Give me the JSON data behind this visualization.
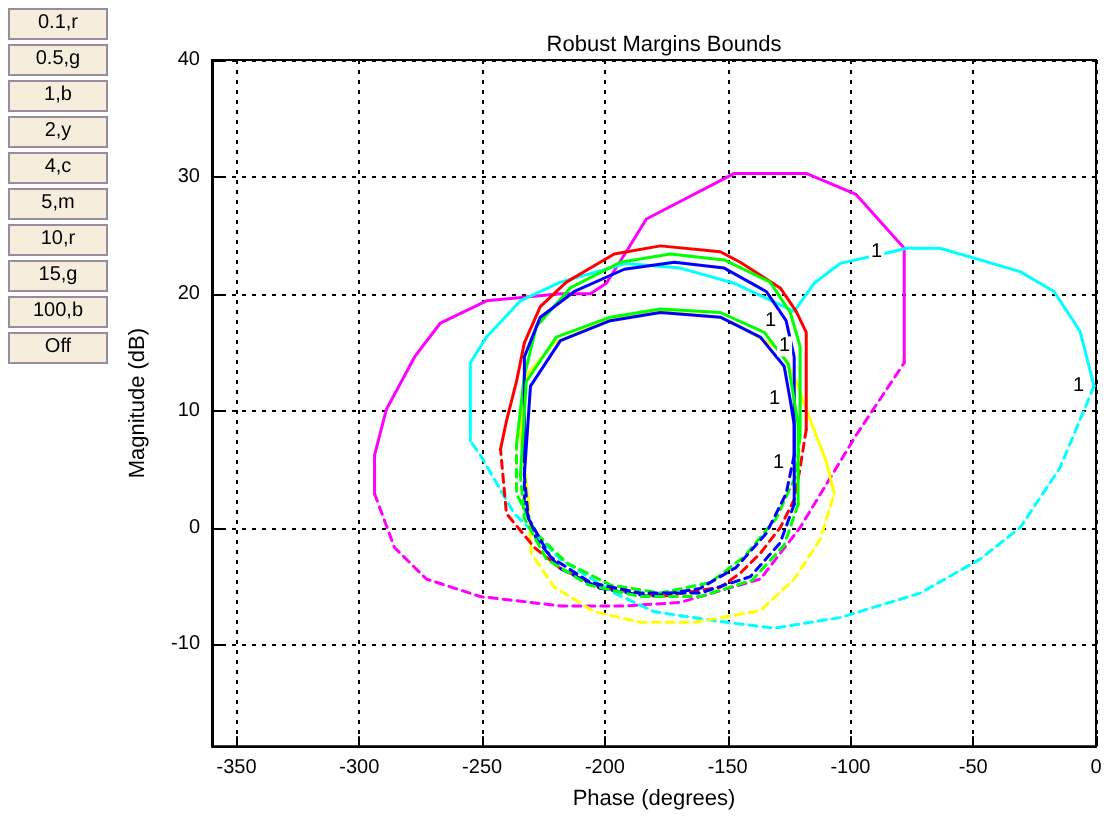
{
  "chart_data": {
    "type": "line",
    "title": "Robust Margins Bounds",
    "xlabel": "Phase (degrees)",
    "ylabel": "Magnitude (dB)",
    "xlim": [
      -360,
      0
    ],
    "xticks": [
      -350,
      -300,
      -250,
      -200,
      -150,
      -100,
      -50,
      0
    ],
    "ylim": [
      -18.7,
      40
    ],
    "yticks": [
      -10,
      0,
      10,
      20,
      30,
      40
    ],
    "grid": true,
    "marker": "none",
    "annotations": [
      "0.1,r",
      "0.5,g",
      "1,b",
      "2,y",
      "4,c",
      "5,m",
      "10,r",
      "15,g",
      "100,b",
      "Off",
      {
        "text": "1",
        "x": -83,
        "y": 23.6
      },
      {
        "text": "1",
        "x": -0.8,
        "y": 12.1
      },
      {
        "text": "1",
        "x": -126.2,
        "y": 17.7
      },
      {
        "text": "1",
        "x": -120.5,
        "y": 15.5
      },
      {
        "text": "1",
        "x": -124.6,
        "y": 11
      },
      {
        "text": "1",
        "x": -122.9,
        "y": 5.5
      }
    ],
    "series": [
      {
        "color": "#ff00ff",
        "line_style": "solid",
        "x": [
          -78.1,
          -78.1,
          -97.7,
          -118,
          -147.3,
          -183.1,
          -191.3,
          -199.4,
          -205.9,
          -218.1,
          -248.2,
          -267,
          -277.5,
          -289,
          -293.8,
          -293.8
        ],
        "values": [
          14.1,
          23.9,
          28.5,
          30.3,
          30.3,
          26.4,
          23.6,
          20.9,
          20.0,
          20.0,
          19.4,
          17.5,
          14.6,
          10.1,
          6.2,
          2.9
        ]
      },
      {
        "color": "#ff00ff",
        "line_style": "dashed",
        "x": [
          -293.8,
          -285.7,
          -272.7,
          -250.7,
          -218.1,
          -191.3,
          -169.3,
          -136.7,
          -120.5,
          -97.7,
          -78.1
        ],
        "values": [
          2.9,
          -1.7,
          -4.4,
          -5.9,
          -6.7,
          -6.7,
          -6.4,
          -4.4,
          0,
          7.9,
          14.1
        ]
      },
      {
        "color": "#00ffff",
        "line_style": "solid",
        "x": [
          -254.8,
          -254.8,
          -248.2,
          -234.4,
          -218.1,
          -191.3,
          -169.3,
          -147.3,
          -122.9,
          -114.8,
          -104.2,
          -83,
          -77.3,
          -63.5,
          -30.9,
          -17.1,
          -6.5,
          -0.8
        ],
        "values": [
          7.4,
          14.1,
          16.3,
          19.4,
          21.0,
          22.6,
          22.2,
          20.9,
          18.5,
          20.9,
          22.6,
          23.6,
          23.9,
          23.9,
          21.9,
          20.2,
          16.8,
          12.1
        ]
      },
      {
        "color": "#00ffff",
        "line_style": "dashed",
        "x": [
          -0.8,
          -14.7,
          -30.9,
          -47.2,
          -71.6,
          -104.2,
          -131,
          -150.6,
          -179.9,
          -196.2,
          -218.1,
          -236.9,
          -250.7,
          -254.8
        ],
        "values": [
          12.1,
          5.1,
          0,
          -2.7,
          -5.6,
          -7.7,
          -8.6,
          -8.1,
          -7.2,
          -5.6,
          -2.7,
          1.2,
          6.2,
          7.4
        ]
      },
      {
        "color": "#ffff00",
        "line_style": "solid",
        "x": [
          -231,
          -234.4,
          -232,
          -220.6,
          -196.2,
          -177.4,
          -153,
          -144.9,
          -128.6,
          -122.1,
          -118,
          -109.9,
          -106.6
        ],
        "values": [
          2.0,
          7.9,
          13.0,
          15.8,
          18.0,
          18.5,
          18.0,
          17.2,
          15.2,
          12.5,
          10.1,
          5.7,
          2.9
        ]
      },
      {
        "color": "#ffff00",
        "line_style": "dashed",
        "x": [
          -231,
          -230,
          -220.6,
          -204.3,
          -185.6,
          -163.6,
          -136.7,
          -122.9,
          -112.3,
          -106.6
        ],
        "values": [
          2.0,
          -2.2,
          -5.1,
          -7.2,
          -8.1,
          -8.1,
          -7.1,
          -4.4,
          -1.0,
          2.9
        ]
      },
      {
        "color": "#ff0000",
        "line_style": "solid",
        "x": [
          -242.5,
          -240.1,
          -236,
          -232.8,
          -226.3,
          -215.7,
          -196.2,
          -177.4,
          -153,
          -144.9,
          -128.6,
          -122.1,
          -118,
          -118
        ],
        "values": [
          6.7,
          9.1,
          12.5,
          15.8,
          18.9,
          21.0,
          23.4,
          24.1,
          23.6,
          22.7,
          20.5,
          18.5,
          16.7,
          8.4
        ]
      },
      {
        "color": "#ff0000",
        "line_style": "dashed",
        "x": [
          -118,
          -120.5,
          -122.9,
          -128.6,
          -136.7,
          -144.9,
          -153,
          -177.4,
          -201.9,
          -218.1,
          -228.7,
          -240.1,
          -242.5
        ],
        "values": [
          8.4,
          5.1,
          2.4,
          0,
          -2.2,
          -3.9,
          -5.1,
          -5.9,
          -5.1,
          -3.5,
          -1.7,
          1.2,
          6.7
        ]
      },
      {
        "color": "#00ff00",
        "line_style": "solid",
        "x": [
          -236,
          -232.8,
          -227.9,
          -214.1,
          -193.7,
          -173.4,
          -151.4,
          -132.7,
          -124.5,
          -120.5,
          -120.5
        ],
        "values": [
          7.1,
          13,
          17.2,
          20.5,
          22.7,
          23.4,
          22.9,
          21.0,
          18.4,
          15.5,
          7.9
        ]
      },
      {
        "color": "#00ff00",
        "line_style": "dashed",
        "x": [
          -120.5,
          -122.1,
          -130.2,
          -143.3,
          -157.1,
          -177.4,
          -197.8,
          -215.7,
          -227.9,
          -236,
          -236
        ],
        "values": [
          7.9,
          4.5,
          0.8,
          -2.5,
          -4.7,
          -5.6,
          -4.9,
          -3.0,
          -0.5,
          2.9,
          7.1
        ]
      },
      {
        "color": "#0000ff",
        "line_style": "solid",
        "x": [
          -232.8,
          -232.8,
          -226.3,
          -212.4,
          -192.1,
          -171.7,
          -151.4,
          -134.3,
          -126.2,
          -122.9,
          -122.9
        ],
        "values": [
          6.2,
          14.6,
          18.0,
          20.2,
          22.1,
          22.7,
          22.2,
          20.2,
          17.7,
          14.6,
          6.2
        ]
      },
      {
        "color": "#0000ff",
        "line_style": "dashed",
        "x": [
          -122.9,
          -126.2,
          -134.3,
          -146.5,
          -161.2,
          -181.5,
          -201.9,
          -218.1,
          -227.9,
          -232.8,
          -232.8
        ],
        "values": [
          6.2,
          2.9,
          -0.5,
          -3.4,
          -5.2,
          -5.9,
          -5.2,
          -3.5,
          -1.0,
          2.0,
          6.2
        ]
      },
      {
        "color": "#00ff00",
        "line_style": "solid",
        "x": [
          -234.4,
          -232,
          -219.8,
          -197.8,
          -177.4,
          -153,
          -135.1,
          -125.3,
          -121.3,
          -121.3
        ],
        "values": [
          4.5,
          12.5,
          16.3,
          18.0,
          18.7,
          18.4,
          16.7,
          14.0,
          8.8,
          2.0
        ]
      },
      {
        "color": "#00ff00",
        "line_style": "dashed",
        "x": [
          -121.3,
          -127,
          -140,
          -161.2,
          -185.6,
          -206.7,
          -223.8,
          -232.8,
          -234.4
        ],
        "values": [
          2.0,
          -1.5,
          -4.5,
          -5.9,
          -5.9,
          -4.9,
          -2.7,
          0.8,
          4.5
        ]
      },
      {
        "color": "#0000ff",
        "line_style": "solid",
        "x": [
          -232.8,
          -230.3,
          -218.1,
          -197.8,
          -177.4,
          -153,
          -136.7,
          -127,
          -124.6,
          -122.9,
          -122.9,
          -122.9
        ],
        "values": [
          4.5,
          12.1,
          16.0,
          17.7,
          18.4,
          18.0,
          16.3,
          13.8,
          11,
          8.8,
          5.5,
          2.0
        ]
      },
      {
        "color": "#0000ff",
        "line_style": "dashed",
        "x": [
          -122.9,
          -128.6,
          -140.8,
          -161.2,
          -185.6,
          -205.9,
          -222.2,
          -231.2,
          -232.8
        ],
        "values": [
          2.0,
          -1.3,
          -4.2,
          -5.6,
          -5.6,
          -4.7,
          -2.5,
          0.8,
          4.5
        ]
      }
    ]
  }
}
